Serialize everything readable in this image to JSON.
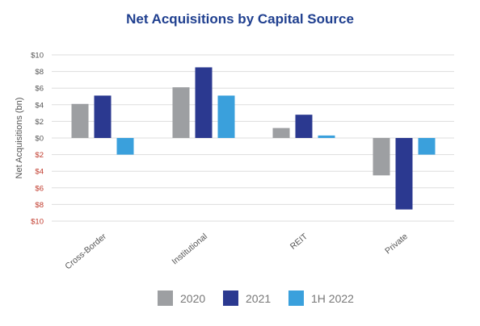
{
  "chart_data": {
    "type": "bar",
    "title": "Net Acquisitions by Capital Source",
    "ylabel": "Net Acquisitions (bn)",
    "xlabel": "",
    "categories": [
      "Cross-Border",
      "Institutional",
      "REIT",
      "Private"
    ],
    "series": [
      {
        "name": "2020",
        "values": [
          4.1,
          6.1,
          1.2,
          -4.5
        ],
        "color": "#9d9fa2"
      },
      {
        "name": "2021",
        "values": [
          5.1,
          8.5,
          2.8,
          -8.6
        ],
        "color": "#2b3990"
      },
      {
        "name": "1H 2022",
        "values": [
          -2.0,
          5.1,
          0.3,
          -2.0
        ],
        "color": "#3aa0dc"
      }
    ],
    "ylim": [
      -10,
      10
    ],
    "yticks": [
      {
        "value": 10,
        "label": "$10"
      },
      {
        "value": 8,
        "label": "$8"
      },
      {
        "value": 6,
        "label": "$6"
      },
      {
        "value": 4,
        "label": "$4"
      },
      {
        "value": 2,
        "label": "$2"
      },
      {
        "value": 0,
        "label": "$0"
      },
      {
        "value": -2,
        "label": "$2"
      },
      {
        "value": -4,
        "label": "$4"
      },
      {
        "value": -6,
        "label": "$6"
      },
      {
        "value": -8,
        "label": "$8"
      },
      {
        "value": -10,
        "label": "$10"
      }
    ],
    "grid": true,
    "legend": "bottom-center",
    "colors": {
      "title": "#1f3f8f",
      "positive_tick": "#555555",
      "negative_tick": "#c0392b",
      "gridline": "#dddddd"
    }
  }
}
